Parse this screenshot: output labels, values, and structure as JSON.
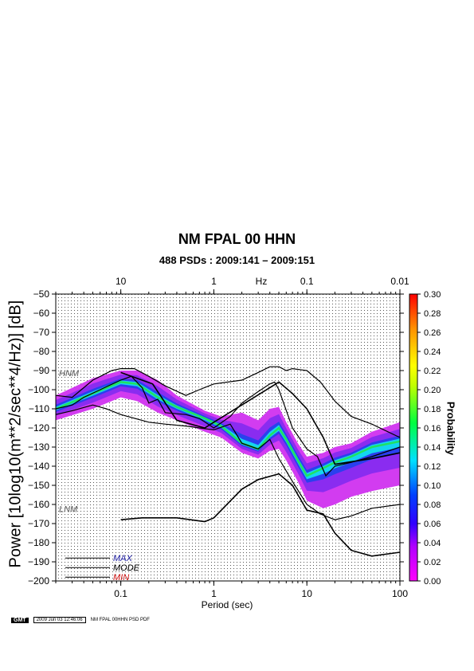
{
  "chart_data": {
    "type": "heatmap",
    "title": "NM FPAL 00 HHN",
    "subtitle": "488 PSDs : 2009:141 – 2009:151",
    "xlabel": "Period (sec)",
    "ylabel": "Power [10log10(m**2/sec**4/Hz)] [dB]",
    "x_scale": "log",
    "xlim": [
      0.02,
      100
    ],
    "ylim": [
      -200,
      -50
    ],
    "x_ticks": [
      {
        "v": 0.1,
        "label": "0.1"
      },
      {
        "v": 1,
        "label": "1"
      },
      {
        "v": 10,
        "label": "10"
      },
      {
        "v": 100,
        "label": "100"
      }
    ],
    "y_ticks": [
      -50,
      -60,
      -70,
      -80,
      -90,
      -100,
      -110,
      -120,
      -130,
      -140,
      -150,
      -160,
      -170,
      -180,
      -190,
      -200
    ],
    "top_axis_label": "Hz",
    "top_ticks": [
      {
        "v": 0.1,
        "label": "10"
      },
      {
        "v": 1,
        "label": "1"
      },
      {
        "v": 10,
        "label": "0.1"
      },
      {
        "v": 100,
        "label": "0.01"
      }
    ],
    "colorbar": {
      "label": "Probability",
      "ticks": [
        "0.00",
        "0.02",
        "0.04",
        "0.06",
        "0.08",
        "0.10",
        "0.12",
        "0.14",
        "0.16",
        "0.18",
        "0.20",
        "0.22",
        "0.24",
        "0.26",
        "0.28",
        "0.30"
      ],
      "range": [
        0,
        0.3
      ]
    },
    "model_labels": {
      "high": "HNM",
      "low": "LNM"
    },
    "legend": [
      {
        "name": "MAX",
        "color": "#1a1aa0"
      },
      {
        "name": "MODE",
        "color": "#000000"
      },
      {
        "name": "MIN",
        "color": "#d01010"
      }
    ],
    "series": [
      {
        "name": "MAX",
        "points": [
          [
            0.02,
            -103
          ],
          [
            0.03,
            -104
          ],
          [
            0.05,
            -95
          ],
          [
            0.08,
            -90
          ],
          [
            0.1,
            -89
          ],
          [
            0.14,
            -89
          ],
          [
            0.2,
            -93
          ],
          [
            0.3,
            -98
          ],
          [
            0.5,
            -103
          ],
          [
            0.7,
            -100
          ],
          [
            1,
            -97
          ],
          [
            2,
            -95
          ],
          [
            3,
            -91
          ],
          [
            4,
            -88
          ],
          [
            5,
            -88
          ],
          [
            6,
            -90
          ],
          [
            7,
            -89
          ],
          [
            10,
            -90
          ],
          [
            14,
            -96
          ],
          [
            20,
            -106
          ],
          [
            30,
            -114
          ],
          [
            50,
            -118
          ],
          [
            100,
            -125
          ]
        ]
      },
      {
        "name": "MODE",
        "points": [
          [
            0.02,
            -110
          ],
          [
            0.03,
            -108
          ],
          [
            0.04,
            -104
          ],
          [
            0.06,
            -100
          ],
          [
            0.1,
            -95
          ],
          [
            0.13,
            -93
          ],
          [
            0.17,
            -99
          ],
          [
            0.2,
            -107
          ],
          [
            0.25,
            -105
          ],
          [
            0.3,
            -112
          ],
          [
            0.5,
            -113
          ],
          [
            0.7,
            -115
          ],
          [
            1,
            -120
          ],
          [
            1.5,
            -114
          ],
          [
            2,
            -107
          ],
          [
            3,
            -101
          ],
          [
            4,
            -97
          ],
          [
            4.5,
            -96
          ],
          [
            5,
            -100
          ],
          [
            7,
            -120
          ],
          [
            10,
            -131
          ],
          [
            13,
            -135
          ],
          [
            16,
            -145
          ],
          [
            20,
            -140
          ],
          [
            30,
            -138
          ],
          [
            50,
            -135
          ],
          [
            100,
            -130
          ]
        ]
      },
      {
        "name": "MIN",
        "points": [
          [
            0.02,
            -113
          ],
          [
            0.03,
            -111
          ],
          [
            0.05,
            -108
          ],
          [
            0.07,
            -110
          ],
          [
            0.1,
            -113
          ],
          [
            0.2,
            -117
          ],
          [
            0.3,
            -118
          ],
          [
            0.5,
            -119
          ],
          [
            0.7,
            -120
          ],
          [
            1,
            -121
          ],
          [
            1.5,
            -118
          ],
          [
            2,
            -128
          ],
          [
            3,
            -131
          ],
          [
            4,
            -126
          ],
          [
            5,
            -136
          ],
          [
            7,
            -148
          ],
          [
            10,
            -160
          ],
          [
            14,
            -165
          ],
          [
            20,
            -168
          ],
          [
            30,
            -166
          ],
          [
            50,
            -162
          ],
          [
            100,
            -160
          ]
        ]
      },
      {
        "name": "NLNM",
        "points": [
          [
            0.1,
            -168
          ],
          [
            0.17,
            -167
          ],
          [
            0.4,
            -167
          ],
          [
            0.8,
            -169
          ],
          [
            1,
            -167
          ],
          [
            2,
            -152
          ],
          [
            3,
            -147
          ],
          [
            5,
            -144
          ],
          [
            7,
            -150
          ],
          [
            10,
            -163
          ],
          [
            15,
            -165
          ],
          [
            20,
            -175
          ],
          [
            30,
            -184
          ],
          [
            50,
            -187
          ],
          [
            100,
            -185
          ]
        ]
      },
      {
        "name": "NHNM",
        "points": [
          [
            0.1,
            -91
          ],
          [
            0.22,
            -97
          ],
          [
            0.4,
            -116
          ],
          [
            0.8,
            -120
          ],
          [
            1,
            -117
          ],
          [
            2,
            -108
          ],
          [
            5,
            -96
          ],
          [
            7,
            -102
          ],
          [
            10,
            -110
          ],
          [
            15,
            -125
          ],
          [
            20,
            -139
          ],
          [
            50,
            -136
          ],
          [
            100,
            -133
          ]
        ]
      }
    ],
    "density_band": {
      "upper": [
        [
          0.02,
          -103
        ],
        [
          0.05,
          -94
        ],
        [
          0.1,
          -90
        ],
        [
          0.15,
          -90
        ],
        [
          0.25,
          -95
        ],
        [
          0.4,
          -103
        ],
        [
          0.8,
          -111
        ],
        [
          1.2,
          -114
        ],
        [
          2,
          -112
        ],
        [
          3,
          -116
        ],
        [
          4,
          -110
        ],
        [
          5,
          -109
        ],
        [
          6,
          -117
        ],
        [
          8,
          -128
        ],
        [
          10,
          -135
        ],
        [
          15,
          -133
        ],
        [
          20,
          -130
        ],
        [
          30,
          -128
        ],
        [
          50,
          -122
        ],
        [
          100,
          -117
        ]
      ],
      "mode": [
        [
          0.02,
          -110
        ],
        [
          0.05,
          -102
        ],
        [
          0.1,
          -96
        ],
        [
          0.15,
          -97
        ],
        [
          0.25,
          -104
        ],
        [
          0.4,
          -109
        ],
        [
          0.8,
          -115
        ],
        [
          1.2,
          -119
        ],
        [
          2,
          -128
        ],
        [
          3,
          -131
        ],
        [
          4,
          -124
        ],
        [
          5,
          -120
        ],
        [
          6,
          -126
        ],
        [
          8,
          -137
        ],
        [
          10,
          -145
        ],
        [
          15,
          -141
        ],
        [
          20,
          -138
        ],
        [
          30,
          -135
        ],
        [
          50,
          -130
        ],
        [
          100,
          -127
        ]
      ],
      "lower": [
        [
          0.02,
          -116
        ],
        [
          0.05,
          -110
        ],
        [
          0.1,
          -104
        ],
        [
          0.15,
          -106
        ],
        [
          0.25,
          -112
        ],
        [
          0.4,
          -116
        ],
        [
          0.8,
          -122
        ],
        [
          1.2,
          -125
        ],
        [
          2,
          -133
        ],
        [
          3,
          -136
        ],
        [
          4,
          -132
        ],
        [
          5,
          -131
        ],
        [
          6,
          -137
        ],
        [
          8,
          -148
        ],
        [
          10,
          -158
        ],
        [
          15,
          -162
        ],
        [
          20,
          -160
        ],
        [
          30,
          -156
        ],
        [
          50,
          -153
        ],
        [
          100,
          -150
        ]
      ]
    },
    "grid": true
  },
  "footer": {
    "logo": "GMT",
    "timestamp": "2009 Jun 03 12:46:06",
    "caption": "NM FPAL 00HHN PSD PDF"
  }
}
